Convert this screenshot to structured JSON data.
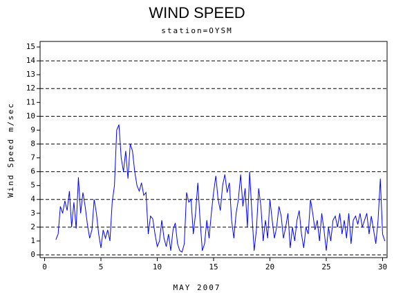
{
  "chart_data": {
    "type": "line",
    "title": "WIND SPEED",
    "subtitle": "station=OYSM",
    "ylabel": "Wind Speed m/sec",
    "xlabel": "MAY 2007",
    "xlim": [
      -0.4,
      30.4
    ],
    "xticks": [
      0,
      5,
      10,
      15,
      20,
      25,
      30
    ],
    "ylim": [
      -0.2,
      15.4
    ],
    "yticks": [
      0,
      1,
      2,
      3,
      4,
      5,
      6,
      7,
      8,
      9,
      10,
      11,
      12,
      13,
      14,
      15
    ],
    "ygrid": [
      0,
      2,
      4,
      6,
      8,
      10,
      12,
      14
    ],
    "grid_style": "dashed",
    "x": [
      1,
      1.2,
      1.4,
      1.6,
      1.8,
      2,
      2.2,
      2.4,
      2.6,
      2.8,
      3,
      3.2,
      3.4,
      3.6,
      3.8,
      4,
      4.2,
      4.4,
      4.6,
      4.8,
      5,
      5.2,
      5.4,
      5.6,
      5.8,
      6,
      6.2,
      6.4,
      6.6,
      6.8,
      7,
      7.2,
      7.4,
      7.6,
      7.8,
      8,
      8.2,
      8.4,
      8.6,
      8.8,
      9,
      9.2,
      9.4,
      9.6,
      9.8,
      10,
      10.2,
      10.4,
      10.6,
      10.8,
      11,
      11.2,
      11.4,
      11.6,
      11.8,
      12,
      12.2,
      12.4,
      12.6,
      12.8,
      13,
      13.2,
      13.4,
      13.6,
      13.8,
      14,
      14.2,
      14.4,
      14.6,
      14.8,
      15,
      15.2,
      15.4,
      15.6,
      15.8,
      16,
      16.2,
      16.4,
      16.6,
      16.8,
      17,
      17.2,
      17.4,
      17.6,
      17.8,
      18,
      18.2,
      18.4,
      18.6,
      18.8,
      19,
      19.2,
      19.4,
      19.6,
      19.8,
      20,
      20.2,
      20.4,
      20.6,
      20.8,
      21,
      21.2,
      21.4,
      21.6,
      21.8,
      22,
      22.2,
      22.4,
      22.6,
      22.8,
      23,
      23.2,
      23.4,
      23.6,
      23.8,
      24,
      24.2,
      24.4,
      24.6,
      24.8,
      25,
      25.2,
      25.4,
      25.6,
      25.8,
      26,
      26.2,
      26.4,
      26.6,
      26.8,
      27,
      27.2,
      27.4,
      27.6,
      27.8,
      28,
      28.2,
      28.4,
      28.6,
      28.8,
      29,
      29.2,
      29.4,
      29.6,
      29.8,
      30,
      30.2
    ],
    "series": [
      {
        "name": "wind speed",
        "color": "#0000ff",
        "values": [
          1.1,
          1.5,
          3.5,
          3.0,
          3.9,
          3.2,
          4.6,
          2.0,
          3.8,
          1.9,
          5.6,
          3.0,
          4.5,
          3.5,
          2.2,
          1.2,
          1.8,
          4.0,
          3.0,
          1.5,
          0.5,
          1.8,
          1.2,
          1.8,
          1.0,
          3.8,
          5.0,
          9.0,
          9.4,
          7.0,
          6.0,
          7.5,
          5.5,
          8.0,
          7.5,
          6.0,
          5.0,
          4.6,
          5.2,
          4.3,
          4.5,
          1.5,
          2.8,
          2.6,
          1.5,
          0.6,
          1.0,
          2.5,
          1.2,
          0.6,
          1.5,
          0.3,
          1.8,
          2.3,
          0.8,
          0.3,
          0.2,
          0.8,
          4.5,
          3.8,
          4.0,
          1.5,
          3.0,
          5.2,
          2.5,
          0.3,
          0.8,
          2.5,
          1.2,
          3.0,
          4.5,
          5.7,
          4.0,
          3.2,
          5.0,
          5.8,
          4.5,
          5.2,
          2.5,
          1.2,
          3.0,
          4.0,
          5.8,
          3.5,
          4.8,
          2.0,
          6.0,
          3.0,
          0.3,
          1.8,
          4.8,
          3.5,
          1.0,
          2.5,
          1.2,
          4.0,
          2.5,
          1.2,
          2.0,
          3.5,
          2.8,
          1.2,
          2.0,
          3.0,
          0.5,
          2.0,
          1.0,
          2.5,
          3.2,
          1.5,
          0.5,
          2.0,
          1.5,
          4.0,
          3.0,
          1.8,
          2.5,
          1.0,
          3.0,
          1.8,
          0.3,
          2.0,
          1.0,
          2.5,
          2.8,
          2.0,
          3.0,
          1.5,
          2.5,
          1.2,
          3.0,
          0.8,
          2.5,
          2.8,
          2.2,
          3.0,
          2.0,
          2.5,
          3.0,
          1.5,
          2.8,
          1.8,
          0.8,
          2.5,
          5.5,
          1.5,
          1.0
        ]
      }
    ]
  }
}
